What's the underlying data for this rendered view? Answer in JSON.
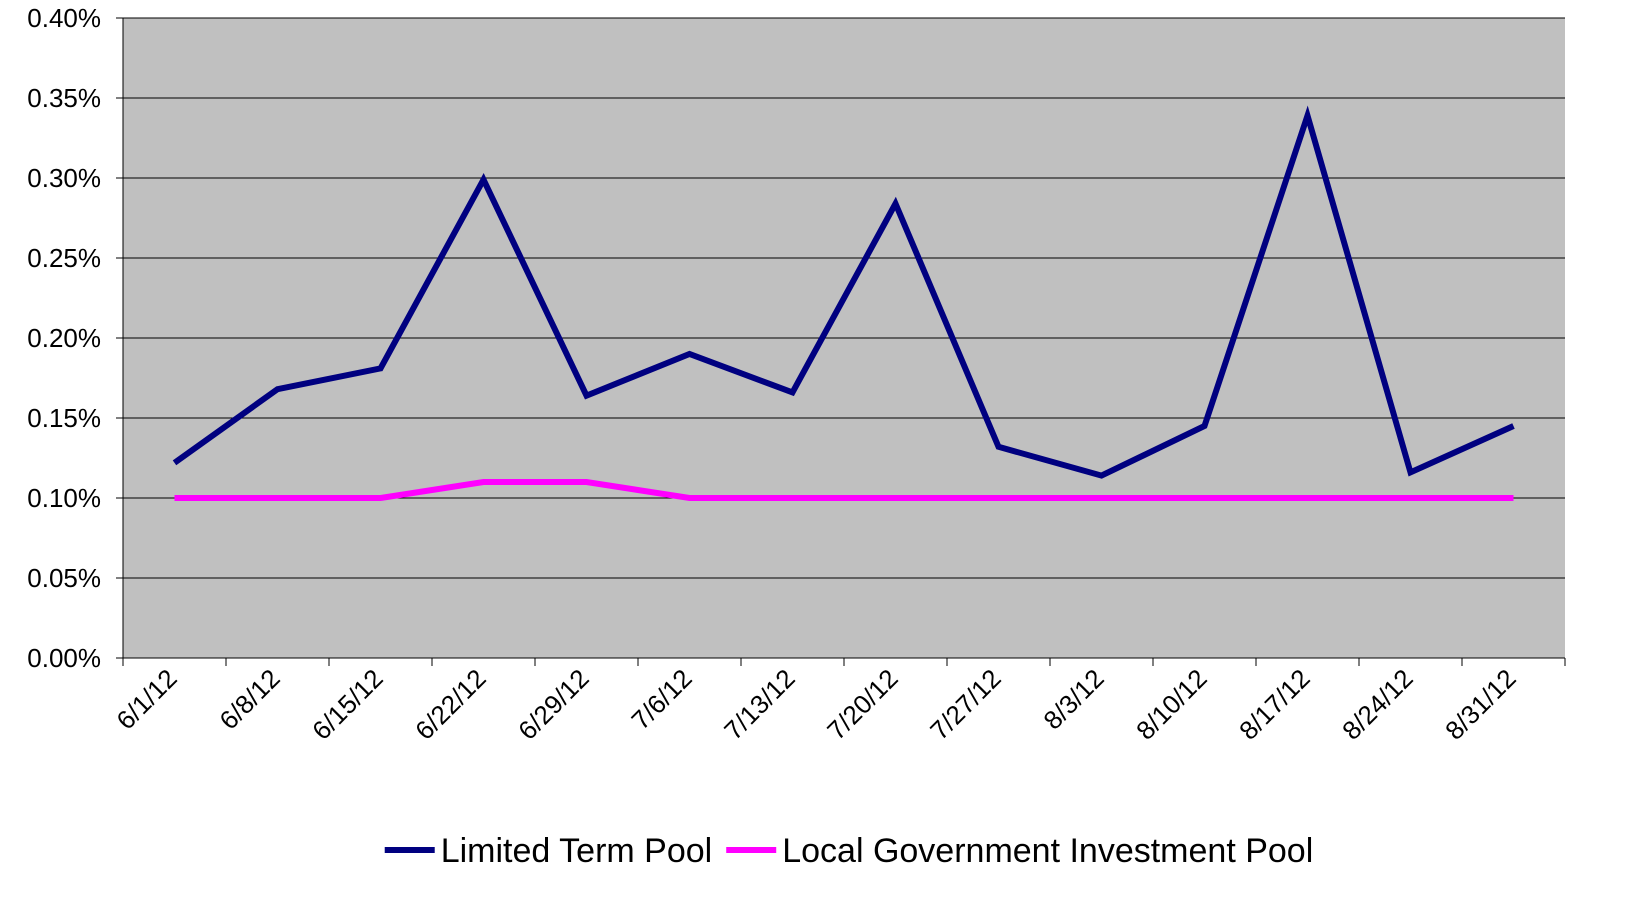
{
  "chart_data": {
    "type": "line",
    "categories": [
      "6/1/12",
      "6/8/12",
      "6/15/12",
      "6/22/12",
      "6/29/12",
      "7/6/12",
      "7/13/12",
      "7/20/12",
      "7/27/12",
      "8/3/12",
      "8/10/12",
      "8/17/12",
      "8/24/12",
      "8/31/12"
    ],
    "series": [
      {
        "name": "Limited Term Pool",
        "color": "#000080",
        "values": [
          0.122,
          0.168,
          0.181,
          0.299,
          0.164,
          0.19,
          0.166,
          0.284,
          0.132,
          0.114,
          0.145,
          0.339,
          0.116,
          0.145
        ]
      },
      {
        "name": "Local Government Investment Pool",
        "color": "#ff00ff",
        "values": [
          0.1,
          0.1,
          0.1,
          0.11,
          0.11,
          0.1,
          0.1,
          0.1,
          0.1,
          0.1,
          0.1,
          0.1,
          0.1,
          0.1
        ]
      }
    ],
    "ylim": [
      0,
      0.4
    ],
    "yticks": [
      {
        "value": 0,
        "label": "0.00%"
      },
      {
        "value": 0.05,
        "label": "0.05%"
      },
      {
        "value": 0.1,
        "label": "0.10%"
      },
      {
        "value": 0.15,
        "label": "0.15%"
      },
      {
        "value": 0.2,
        "label": "0.20%"
      },
      {
        "value": 0.25,
        "label": "0.25%"
      },
      {
        "value": 0.3,
        "label": "0.30%"
      },
      {
        "value": 0.35,
        "label": "0.35%"
      },
      {
        "value": 0.4,
        "label": "0.40%"
      }
    ],
    "grid": true,
    "plot_background": "#c0c0c0",
    "legend": "bottom"
  }
}
